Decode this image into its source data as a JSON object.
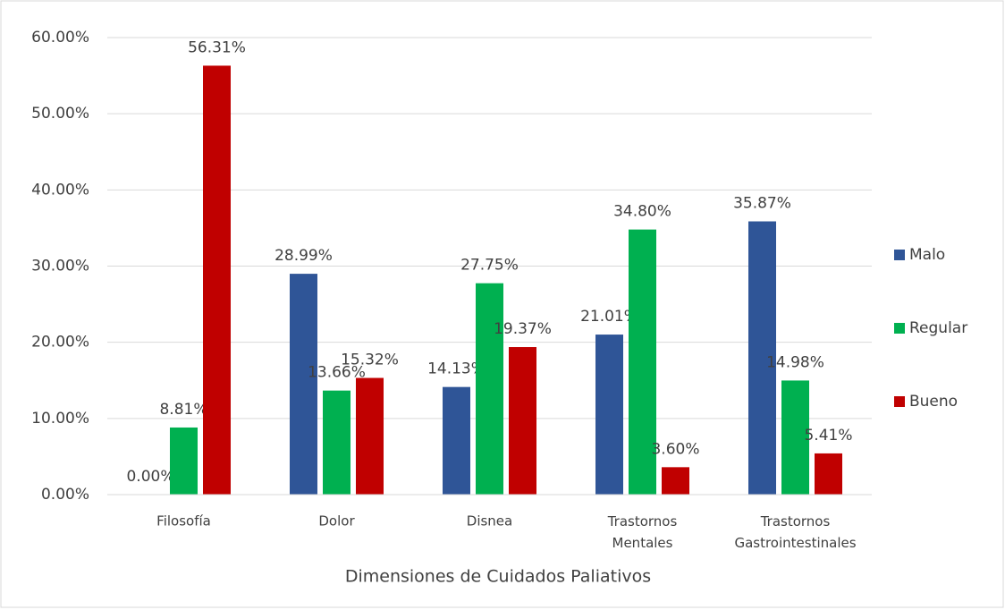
{
  "chart_data": {
    "type": "bar",
    "x_label": "Dimensiones de Cuidados Paliativos",
    "categories": [
      "Filosofía",
      "Dolor",
      "Disnea",
      "Trastornos Mentales",
      "Trastornos Gastrointestinales"
    ],
    "series": [
      {
        "name": "Malo",
        "color": "#2f5597",
        "values": [
          0,
          28.99,
          14.13,
          21.01,
          35.87
        ],
        "value_labels": [
          "0.00%",
          "28.99%",
          "14.13%",
          "21.01%",
          "35.87%"
        ]
      },
      {
        "name": "Regular",
        "color": "#00b050",
        "values": [
          8.81,
          13.66,
          27.75,
          34.8,
          14.98
        ],
        "value_labels": [
          "8.81%",
          "13.66%",
          "27.75%",
          "34.80%",
          "14.98%"
        ]
      },
      {
        "name": "Bueno",
        "color": "#c00000",
        "values": [
          56.31,
          15.32,
          19.37,
          3.6,
          5.41
        ],
        "value_labels": [
          "56.31%",
          "15.32%",
          "19.37%",
          "3.60%",
          "5.41%"
        ]
      }
    ],
    "ylim": [
      0,
      60
    ],
    "yticks": [
      {
        "value": 0,
        "label": "0.00%"
      },
      {
        "value": 10,
        "label": "10.00%"
      },
      {
        "value": 20,
        "label": "20.00%"
      },
      {
        "value": 30,
        "label": "30.00%"
      },
      {
        "value": 40,
        "label": "40.00%"
      },
      {
        "value": 50,
        "label": "50.00%"
      },
      {
        "value": 60,
        "label": "60.00%"
      }
    ],
    "grid": true,
    "legend": "right"
  }
}
